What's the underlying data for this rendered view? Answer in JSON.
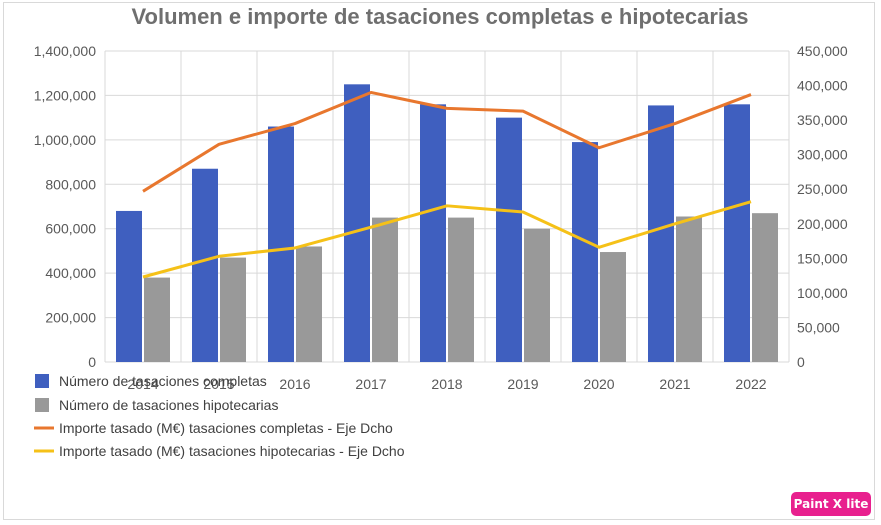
{
  "chart_data": {
    "type": "bar",
    "title": "Volumen e importe de tasaciones completas e hipotecarias",
    "categories": [
      "2014",
      "2015",
      "2016",
      "2017",
      "2018",
      "2019",
      "2020",
      "2021",
      "2022"
    ],
    "y_left": {
      "ticks": [
        "0",
        "200,000",
        "400,000",
        "600,000",
        "800,000",
        "1,000,000",
        "1,200,000",
        "1,400,000"
      ],
      "ylim": [
        0,
        1400000
      ]
    },
    "y_right": {
      "ticks": [
        "0",
        "50,000",
        "100,000",
        "150,000",
        "200,000",
        "250,000",
        "300,000",
        "350,000",
        "400,000",
        "450,000"
      ],
      "ylim": [
        0,
        450000
      ]
    },
    "grid": true,
    "legend_position": "bottom-left",
    "series": [
      {
        "name": "Número de tasaciones completas",
        "kind": "bar",
        "axis": "left",
        "color": "#3f5fbf",
        "values": [
          680000,
          870000,
          1060000,
          1250000,
          1160000,
          1100000,
          990000,
          1155000,
          1160000
        ]
      },
      {
        "name": "Número de tasaciones hipotecarias",
        "kind": "bar",
        "axis": "left",
        "color": "#999999",
        "values": [
          380000,
          470000,
          520000,
          650000,
          650000,
          600000,
          495000,
          655000,
          670000
        ]
      },
      {
        "name": "Importe tasado (M€) tasaciones completas - Eje Dcho",
        "kind": "line",
        "axis": "right",
        "color": "#e8772e",
        "values": [
          247000,
          315000,
          345000,
          390000,
          367000,
          363000,
          310000,
          345000,
          387000
        ]
      },
      {
        "name": "Importe tasado (M€) tasaciones hipotecarias - Eje Dcho",
        "kind": "line",
        "axis": "right",
        "color": "#f5c118",
        "values": [
          123000,
          153000,
          165000,
          195000,
          226000,
          217000,
          166000,
          200000,
          232000
        ]
      }
    ]
  },
  "watermark": {
    "label": "Paint X lite",
    "color": "#e8208e"
  }
}
